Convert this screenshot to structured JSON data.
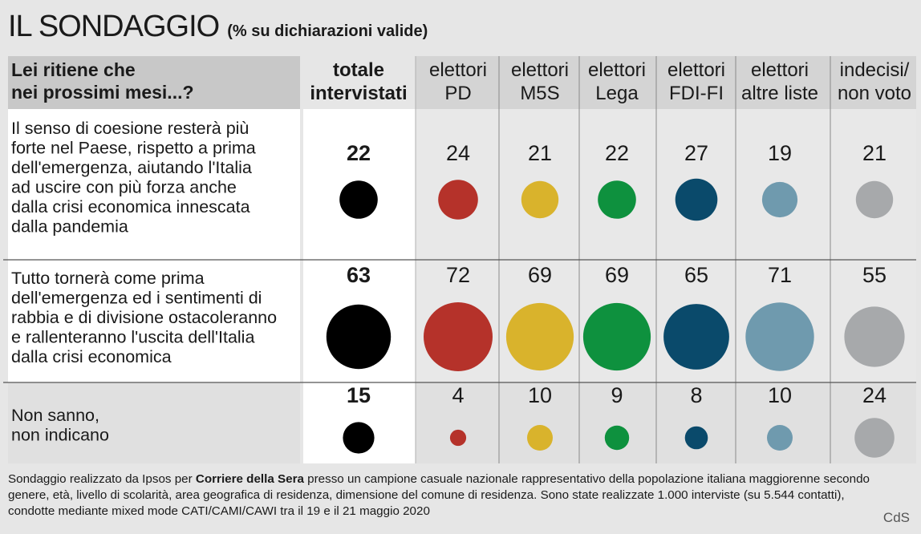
{
  "title": "IL SONDAGGIO",
  "subtitle": "(% su dichiarazioni valide)",
  "credit": "CdS",
  "footnote": {
    "prefix": "Sondaggio realizzato da Ipsos per ",
    "bold": "Corriere della Sera",
    "suffix": " presso un campione casuale nazionale rappresentativo della popolazione italiana maggiorenne secondo genere, età, livello di scolarità, area geografica di residenza, dimensione del comune di residenza. Sono state realizzate 1.000 interviste (su 5.544 contatti), condotte mediante mixed mode CATI/CAMI/CAWI tra il 19 e il 21 maggio 2020"
  },
  "chart_data": {
    "type": "table",
    "question": [
      "Lei ritiene che",
      "nei prossimi mesi...?"
    ],
    "columns": [
      {
        "label": [
          "totale",
          "intervistati"
        ],
        "bold": true,
        "color": "#000000"
      },
      {
        "label": [
          "elettori",
          "PD"
        ],
        "bold": false,
        "color": "#b5322a"
      },
      {
        "label": [
          "elettori",
          "M5S"
        ],
        "bold": false,
        "color": "#d9b32c"
      },
      {
        "label": [
          "elettori",
          "Lega"
        ],
        "bold": false,
        "color": "#0e913e"
      },
      {
        "label": [
          "elettori",
          "FDI-FI"
        ],
        "bold": false,
        "color": "#0a4a6b"
      },
      {
        "label": [
          "elettori",
          "altre liste"
        ],
        "bold": false,
        "color": "#6f9aae"
      },
      {
        "label": [
          "indecisi/",
          "non voto"
        ],
        "bold": false,
        "color": "#a7a9ab"
      }
    ],
    "rows": [
      {
        "text": [
          "Il senso di coesione resterà più",
          "forte nel Paese, rispetto a prima",
          "dell'emergenza, aiutando l'Italia",
          "ad uscire con più forza anche",
          "dalla crisi economica innescata",
          "dalla pandemia"
        ],
        "values": [
          22,
          24,
          21,
          22,
          27,
          19,
          21
        ]
      },
      {
        "text": [
          "Tutto tornerà come prima",
          "dell'emergenza ed i sentimenti di",
          "rabbia e di divisione ostacoleranno",
          "e rallenteranno l'uscita dell'Italia",
          "dalla crisi economica"
        ],
        "values": [
          63,
          72,
          69,
          69,
          65,
          71,
          55
        ]
      },
      {
        "text": [
          "Non sanno,",
          "non indicano"
        ],
        "values": [
          15,
          4,
          10,
          9,
          8,
          10,
          24
        ]
      }
    ]
  }
}
